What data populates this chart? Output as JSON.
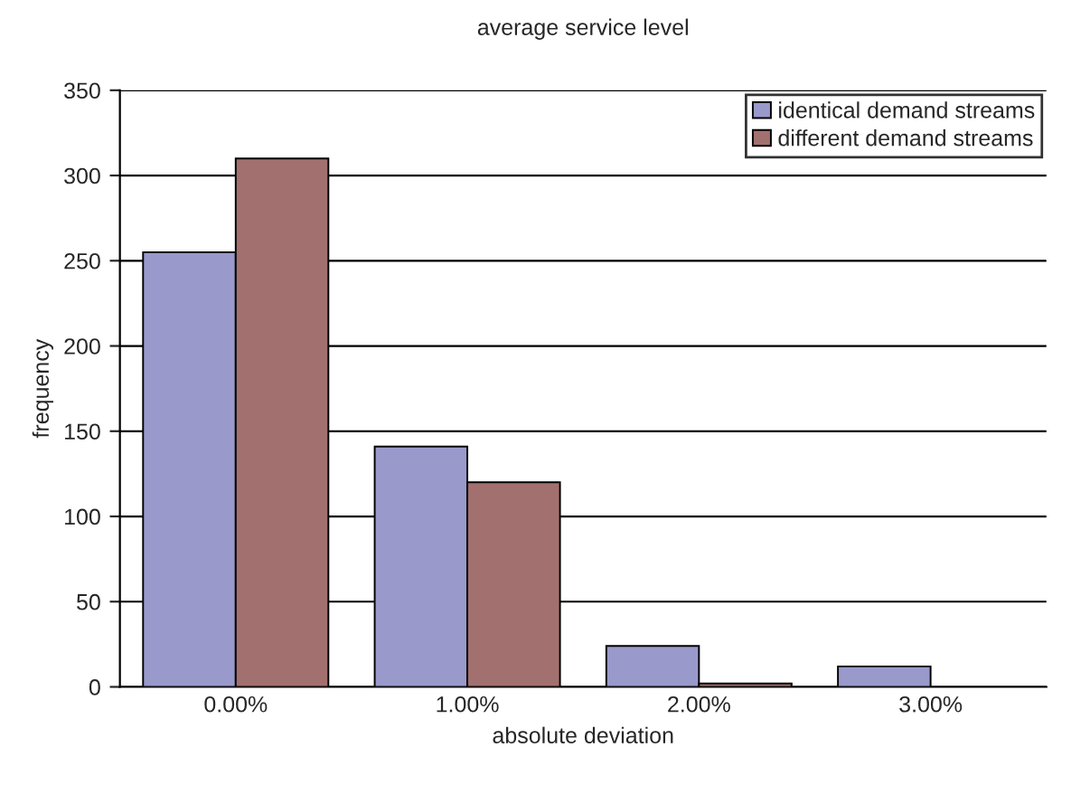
{
  "chart_data": {
    "type": "bar",
    "title": "average service level",
    "xlabel": "absolute deviation",
    "ylabel": "frequency",
    "categories": [
      "0.00%",
      "1.00%",
      "2.00%",
      "3.00%"
    ],
    "series": [
      {
        "name": "identical demand streams",
        "color": "#9999cc",
        "values": [
          255,
          141,
          24,
          12
        ]
      },
      {
        "name": "different demand streams",
        "color": "#a37070",
        "values": [
          310,
          120,
          2,
          null
        ]
      }
    ],
    "ylim": [
      0,
      350
    ],
    "yticks": [
      0,
      50,
      100,
      150,
      200,
      250,
      300,
      350
    ],
    "grid": "y",
    "legend": "top right"
  }
}
